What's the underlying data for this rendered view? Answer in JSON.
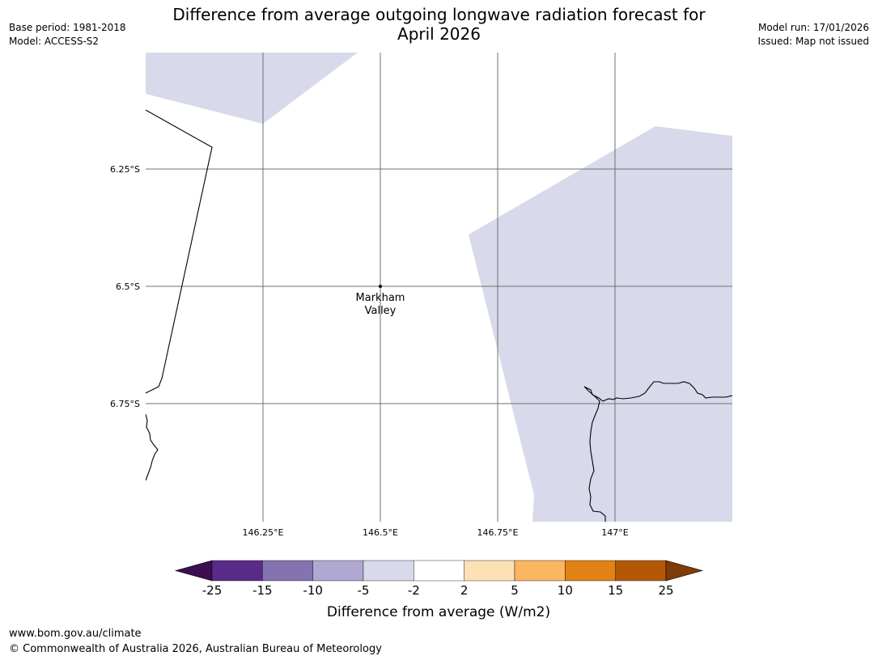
{
  "header": {
    "title_line1": "Difference from average outgoing longwave radiation forecast for",
    "title_line2": "April 2026",
    "base_period": "Base period: 1981-2018",
    "model": "Model: ACCESS-S2",
    "model_run": "Model run: 17/01/2026",
    "issued": "Issued: Map not issued"
  },
  "map": {
    "lat_labels": [
      "6.25°S",
      "6.5°S",
      "6.75°S"
    ],
    "lon_labels": [
      "146.25°E",
      "146.5°E",
      "146.75°E",
      "147°E"
    ],
    "place": {
      "name_line1": "Markham",
      "name_line2": "Valley"
    },
    "anomaly_fill_color": "#d8d9ea",
    "anomaly_category": "-5 to -2"
  },
  "colorbar": {
    "labels": [
      "-25",
      "-15",
      "-10",
      "-5",
      "-2",
      "2",
      "5",
      "10",
      "15",
      "25"
    ],
    "colors": [
      "#3b0f50",
      "#5a2a8a",
      "#8473b0",
      "#b0a8d2",
      "#d8d9ea",
      "#ffffff",
      "#fde0b4",
      "#fab661",
      "#e08214",
      "#b35807",
      "#7f3b08"
    ],
    "title": "Difference from average (W/m2)"
  },
  "footer": {
    "url": "www.bom.gov.au/climate",
    "copyright": "© Commonwealth of Australia 2026, Australian Bureau of Meteorology"
  }
}
